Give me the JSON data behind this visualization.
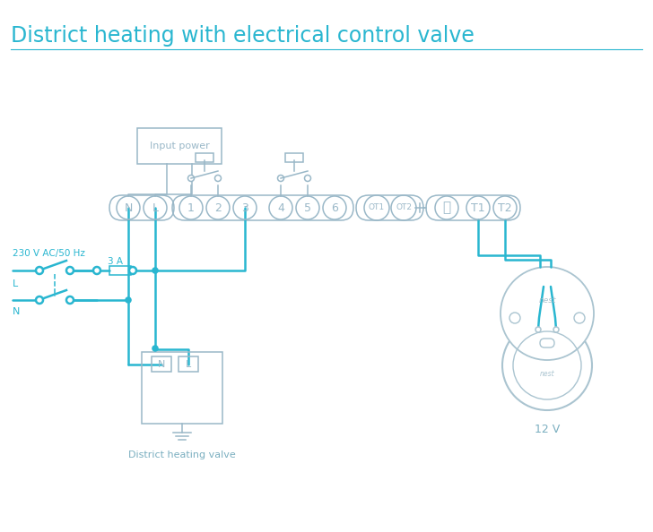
{
  "title": "District heating with electrical control valve",
  "title_color": "#29b6d0",
  "title_fontsize": 16,
  "bg_color": "#ffffff",
  "line_color": "#29b6d0",
  "box_color": "#9ab8c8",
  "label_color": "#7bafc0",
  "wire_lw": 1.8,
  "thin_lw": 1.1,
  "input_power_label": "Input power",
  "district_heating_label": "District heating valve",
  "voltage_label": "230 V AC/50 Hz",
  "fuse_label": "3 A",
  "nest_label_12v": "12 V",
  "L_label": "L",
  "N_label": "N",
  "nest_color": "#aac4d0"
}
